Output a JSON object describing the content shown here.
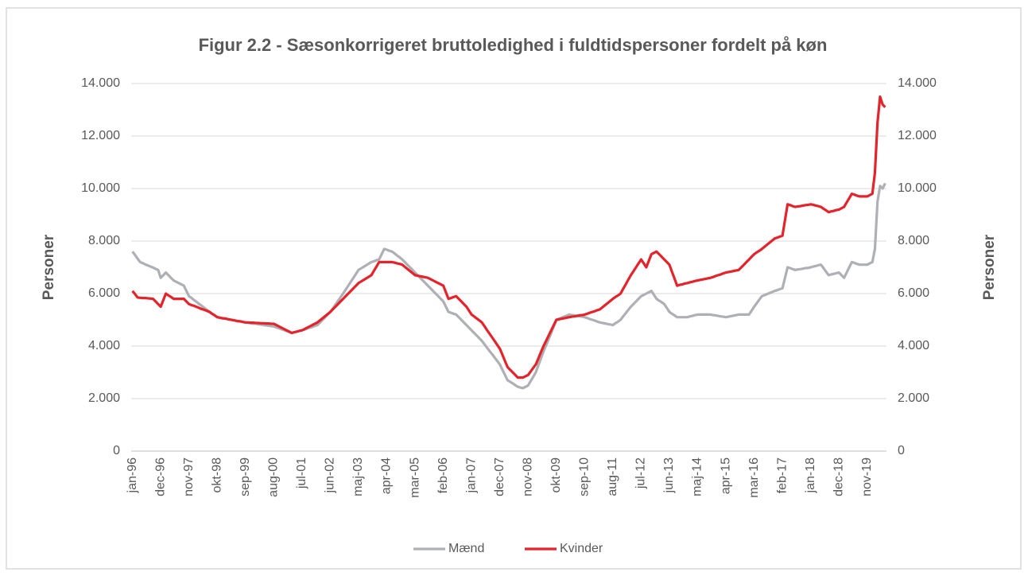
{
  "chart_data": {
    "type": "line",
    "title": "Figur 2.2 - Sæsonkorrigeret bruttoledighed i fuldtidspersoner fordelt på køn",
    "y_label": "Personer",
    "y2_label": "Personer",
    "categories": [
      "jan-96",
      null,
      null,
      null,
      null,
      null,
      null,
      null,
      null,
      null,
      null,
      "dec-96",
      null,
      null,
      null,
      null,
      null,
      null,
      null,
      null,
      null,
      null,
      "nov-97",
      null,
      null,
      null,
      null,
      null,
      null,
      null,
      null,
      null,
      null,
      "okt-98",
      null,
      null,
      null,
      null,
      null,
      null,
      null,
      null,
      null,
      null,
      "sep-99",
      null,
      null,
      null,
      null,
      null,
      null,
      null,
      null,
      null,
      null,
      "aug-00",
      null,
      null,
      null,
      null,
      null,
      null,
      null,
      null,
      null,
      null,
      "jul-01",
      null,
      null,
      null,
      null,
      null,
      null,
      null,
      null,
      null,
      null,
      "jun-02",
      null,
      null,
      null,
      null,
      null,
      null,
      null,
      null,
      null,
      null,
      "maj-03",
      null,
      null,
      null,
      null,
      null,
      null,
      null,
      null,
      null,
      null,
      "apr-04",
      null,
      null,
      null,
      null,
      null,
      null,
      null,
      null,
      null,
      null,
      "mar-05",
      null,
      null,
      null,
      null,
      null,
      null,
      null,
      null,
      null,
      null,
      "feb-06",
      null,
      null,
      null,
      null,
      null,
      null,
      null,
      null,
      null,
      null,
      "jan-07",
      null,
      null,
      null,
      null,
      null,
      null,
      null,
      null,
      null,
      null,
      "dec-07",
      null,
      null,
      null,
      null,
      null,
      null,
      null,
      null,
      null,
      null,
      "nov-08",
      null,
      null,
      null,
      null,
      null,
      null,
      null,
      null,
      null,
      null,
      "okt-09",
      null,
      null,
      null,
      null,
      null,
      null,
      null,
      null,
      null,
      null,
      "sep-10",
      null,
      null,
      null,
      null,
      null,
      null,
      null,
      null,
      null,
      null,
      "aug-11",
      null,
      null,
      null,
      null,
      null,
      null,
      null,
      null,
      null,
      null,
      "jul-12",
      null,
      null,
      null,
      null,
      null,
      null,
      null,
      null,
      null,
      null,
      "jun-13",
      null,
      null,
      null,
      null,
      null,
      null,
      null,
      null,
      null,
      null,
      "maj-14",
      null,
      null,
      null,
      null,
      null,
      null,
      null,
      null,
      null,
      null,
      "apr-15",
      null,
      null,
      null,
      null,
      null,
      null,
      null,
      null,
      null,
      null,
      "mar-16",
      null,
      null,
      null,
      null,
      null,
      null,
      null,
      null,
      null,
      null,
      "feb-17",
      null,
      null,
      null,
      null,
      null,
      null,
      null,
      null,
      null,
      null,
      "jan-18",
      null,
      null,
      null,
      null,
      null,
      null,
      null,
      null,
      null,
      null,
      "dec-18",
      null,
      null,
      null,
      null,
      null,
      null,
      null,
      null,
      null,
      null,
      "nov-19",
      null,
      null,
      null,
      null,
      null,
      null,
      null
    ],
    "series": [
      {
        "name": "Mænd",
        "color": "#aeb0b5",
        "values": [
          7600,
          7470,
          7330,
          7200,
          7160,
          7110,
          7070,
          7030,
          6990,
          6940,
          6900,
          6600,
          6700,
          6800,
          6700,
          6600,
          6500,
          6450,
          6400,
          6350,
          6300,
          6100,
          5900,
          5830,
          5750,
          5680,
          5600,
          5530,
          5450,
          5380,
          5300,
          5230,
          5170,
          5100,
          5080,
          5060,
          5050,
          5030,
          5010,
          4990,
          4970,
          4950,
          4940,
          4920,
          4900,
          4890,
          4870,
          4860,
          4850,
          4830,
          4820,
          4800,
          4790,
          4780,
          4760,
          4750,
          4710,
          4680,
          4640,
          4610,
          4570,
          4540,
          4500,
          4530,
          4550,
          4580,
          4600,
          4630,
          4670,
          4700,
          4730,
          4770,
          4800,
          4900,
          5000,
          5100,
          5200,
          5300,
          5440,
          5580,
          5720,
          5860,
          6000,
          6150,
          6300,
          6450,
          6600,
          6750,
          6900,
          6960,
          7020,
          7080,
          7140,
          7200,
          7230,
          7270,
          7300,
          7500,
          7700,
          7670,
          7630,
          7600,
          7530,
          7450,
          7380,
          7300,
          7200,
          7100,
          7000,
          6900,
          6800,
          6700,
          6600,
          6500,
          6400,
          6300,
          6200,
          6100,
          6000,
          5900,
          5800,
          5700,
          5500,
          5300,
          5270,
          5230,
          5200,
          5100,
          5000,
          4900,
          4800,
          4700,
          4600,
          4500,
          4400,
          4300,
          4200,
          4070,
          3940,
          3810,
          3690,
          3560,
          3430,
          3300,
          3100,
          2900,
          2700,
          2640,
          2580,
          2510,
          2450,
          2420,
          2400,
          2450,
          2500,
          2670,
          2830,
          3000,
          3270,
          3530,
          3800,
          4030,
          4270,
          4500,
          4750,
          5000,
          5040,
          5080,
          5120,
          5160,
          5200,
          5180,
          5170,
          5150,
          5130,
          5120,
          5100,
          5070,
          5030,
          5000,
          4970,
          4930,
          4900,
          4880,
          4860,
          4840,
          4820,
          4800,
          4870,
          4930,
          5000,
          5130,
          5250,
          5380,
          5500,
          5600,
          5700,
          5800,
          5900,
          5950,
          6000,
          6050,
          6100,
          5950,
          5800,
          5730,
          5670,
          5600,
          5450,
          5300,
          5230,
          5170,
          5100,
          5100,
          5100,
          5100,
          5100,
          5130,
          5150,
          5180,
          5200,
          5200,
          5200,
          5200,
          5200,
          5200,
          5180,
          5170,
          5150,
          5130,
          5120,
          5100,
          5120,
          5140,
          5160,
          5180,
          5200,
          5200,
          5200,
          5200,
          5200,
          5350,
          5500,
          5630,
          5770,
          5900,
          5940,
          5980,
          6020,
          6060,
          6100,
          6130,
          6170,
          6200,
          6600,
          7000,
          6970,
          6930,
          6900,
          6920,
          6930,
          6950,
          6970,
          6980,
          7000,
          7030,
          7050,
          7080,
          7100,
          6970,
          6830,
          6700,
          6730,
          6750,
          6780,
          6800,
          6700,
          6600,
          6800,
          7000,
          7200,
          7170,
          7130,
          7100,
          7100,
          7100,
          7100,
          7150,
          7200,
          7700,
          9500,
          10100,
          10000,
          10200
        ]
      },
      {
        "name": "Kvinder",
        "color": "#e3242b",
        "values": [
          6100,
          5980,
          5850,
          5840,
          5830,
          5830,
          5820,
          5810,
          5800,
          5700,
          5600,
          5500,
          5750,
          6000,
          5930,
          5870,
          5800,
          5800,
          5800,
          5800,
          5800,
          5700,
          5600,
          5560,
          5530,
          5490,
          5450,
          5410,
          5380,
          5340,
          5300,
          5230,
          5170,
          5100,
          5080,
          5060,
          5050,
          5030,
          5010,
          4990,
          4970,
          4950,
          4940,
          4920,
          4900,
          4900,
          4890,
          4890,
          4880,
          4880,
          4870,
          4870,
          4860,
          4860,
          4850,
          4850,
          4800,
          4750,
          4700,
          4650,
          4600,
          4550,
          4500,
          4530,
          4550,
          4580,
          4600,
          4650,
          4700,
          4750,
          4800,
          4850,
          4900,
          4980,
          5060,
          5140,
          5220,
          5300,
          5400,
          5500,
          5600,
          5700,
          5800,
          5900,
          6000,
          6100,
          6200,
          6300,
          6400,
          6460,
          6520,
          6580,
          6640,
          6700,
          6870,
          7030,
          7200,
          7200,
          7200,
          7200,
          7200,
          7200,
          7180,
          7150,
          7130,
          7100,
          7020,
          6940,
          6860,
          6780,
          6700,
          6680,
          6660,
          6640,
          6620,
          6600,
          6550,
          6500,
          6450,
          6400,
          6350,
          6300,
          6050,
          5800,
          5830,
          5870,
          5900,
          5800,
          5700,
          5600,
          5500,
          5350,
          5200,
          5130,
          5050,
          4980,
          4900,
          4760,
          4610,
          4470,
          4330,
          4190,
          4040,
          3900,
          3670,
          3430,
          3200,
          3100,
          3000,
          2900,
          2800,
          2800,
          2800,
          2850,
          2900,
          3030,
          3170,
          3300,
          3530,
          3770,
          4000,
          4200,
          4400,
          4600,
          4800,
          5000,
          5020,
          5040,
          5060,
          5080,
          5100,
          5120,
          5130,
          5150,
          5170,
          5180,
          5200,
          5230,
          5270,
          5300,
          5330,
          5370,
          5400,
          5480,
          5560,
          5640,
          5720,
          5800,
          5870,
          5930,
          6000,
          6180,
          6350,
          6530,
          6700,
          6850,
          7000,
          7150,
          7300,
          7150,
          7000,
          7250,
          7500,
          7550,
          7600,
          7500,
          7400,
          7300,
          7200,
          7100,
          6830,
          6570,
          6300,
          6330,
          6350,
          6380,
          6400,
          6430,
          6450,
          6480,
          6500,
          6520,
          6540,
          6560,
          6580,
          6600,
          6630,
          6670,
          6700,
          6730,
          6770,
          6800,
          6820,
          6840,
          6860,
          6880,
          6900,
          7000,
          7100,
          7200,
          7300,
          7400,
          7500,
          7570,
          7630,
          7700,
          7780,
          7860,
          7940,
          8020,
          8100,
          8130,
          8170,
          8200,
          8800,
          9400,
          9370,
          9330,
          9300,
          9320,
          9330,
          9350,
          9370,
          9380,
          9400,
          9380,
          9350,
          9330,
          9300,
          9230,
          9170,
          9100,
          9130,
          9150,
          9180,
          9200,
          9250,
          9300,
          9470,
          9630,
          9800,
          9770,
          9730,
          9700,
          9700,
          9700,
          9700,
          9750,
          9800,
          10600,
          12500,
          13500,
          13200,
          13100
        ]
      }
    ],
    "ylim": [
      0,
      14000
    ],
    "yticks": [
      0,
      {
        "value": 2000,
        "label": "2.000"
      },
      {
        "value": 4000,
        "label": "4.000"
      },
      {
        "value": 6000,
        "label": "6.000"
      },
      {
        "value": 8000,
        "label": "8.000"
      },
      {
        "value": 10000,
        "label": "10.000"
      },
      {
        "value": 12000,
        "label": "12.000"
      },
      {
        "value": 14000,
        "label": "14.000"
      }
    ],
    "y2lim": [
      0,
      14000
    ],
    "y2ticks": [
      0,
      {
        "value": 2000,
        "label": "2.000"
      },
      {
        "value": 4000,
        "label": "4.000"
      },
      {
        "value": 6000,
        "label": "6.000"
      },
      {
        "value": 8000,
        "label": "8.000"
      },
      {
        "value": 10000,
        "label": "10.000"
      },
      {
        "value": 12000,
        "label": "12.000"
      },
      {
        "value": 14000,
        "label": "14.000"
      }
    ],
    "grid": true,
    "legend": "bottom"
  }
}
